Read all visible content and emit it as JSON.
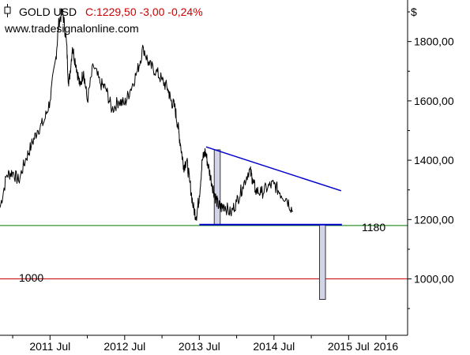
{
  "header": {
    "symbol": "GOLD USD",
    "quote": "C:1229,50 -3,00 -0,24%",
    "website": "www.tradesignalonline.com",
    "currency": "$"
  },
  "colors": {
    "price": "#000000",
    "trendline": "#0000cc",
    "support_line": "#007a00",
    "support_label": "#007a00",
    "target_line": "#cc0000",
    "target_label": "#cc0000",
    "quote": "#cc0000",
    "box_fill": "#d4d4e8"
  },
  "chart_data": {
    "type": "line",
    "title": "GOLD USD",
    "x_tick_labels": [
      "2011 Jul",
      "2012 Jul",
      "2013 Jul",
      "2014 Jul",
      "2015 Jul",
      "2016"
    ],
    "x_ticks": [
      2011.5,
      2012.5,
      2013.5,
      2014.5,
      2015.5,
      2016.0
    ],
    "xlim": [
      2010.83,
      2016.29
    ],
    "y_tick_labels": [
      "1000,00",
      "1200,00",
      "1400,00",
      "1600,00",
      "1800,00"
    ],
    "y_ticks": [
      1000,
      1200,
      1400,
      1600,
      1800
    ],
    "ylim": [
      810,
      1940
    ],
    "y_axis_side": "right",
    "grid": false,
    "series": [
      {
        "x": [
          2010.83,
          2010.92,
          2011.0,
          2011.08,
          2011.17,
          2011.25,
          2011.33,
          2011.42,
          2011.5,
          2011.58,
          2011.62,
          2011.67,
          2011.72,
          2011.75,
          2011.8,
          2011.85,
          2011.9,
          2011.95,
          2012.0,
          2012.08,
          2012.17,
          2012.25,
          2012.33,
          2012.42,
          2012.5,
          2012.58,
          2012.67,
          2012.75,
          2012.83,
          2012.92,
          2013.0,
          2013.08,
          2013.12,
          2013.17,
          2013.21,
          2013.25,
          2013.29,
          2013.33,
          2013.37,
          2013.42,
          2013.46,
          2013.5,
          2013.54,
          2013.58,
          2013.62,
          2013.67,
          2013.71,
          2013.75,
          2013.79,
          2013.83,
          2013.92,
          2014.0,
          2014.08,
          2014.17,
          2014.21,
          2014.25,
          2014.33,
          2014.42,
          2014.5,
          2014.58,
          2014.67,
          2014.75
        ],
        "values": [
          1240,
          1350,
          1360,
          1330,
          1400,
          1450,
          1500,
          1530,
          1600,
          1750,
          1870,
          1900,
          1800,
          1650,
          1780,
          1720,
          1650,
          1700,
          1600,
          1720,
          1660,
          1640,
          1570,
          1600,
          1590,
          1640,
          1700,
          1780,
          1720,
          1700,
          1670,
          1640,
          1600,
          1580,
          1520,
          1450,
          1380,
          1400,
          1330,
          1240,
          1210,
          1280,
          1400,
          1430,
          1380,
          1320,
          1280,
          1250,
          1240,
          1250,
          1220,
          1260,
          1310,
          1370,
          1340,
          1300,
          1290,
          1310,
          1320,
          1290,
          1270,
          1230
        ]
      }
    ],
    "trendline": {
      "x": [
        2013.59,
        2015.4
      ],
      "y": [
        1445,
        1297
      ]
    },
    "support_line": {
      "x": [
        2013.5,
        2015.41
      ],
      "y": [
        1183,
        1183
      ]
    },
    "horizontal_lines": [
      {
        "y": 1180,
        "label": "1180"
      },
      {
        "y": 1000,
        "label": "1000"
      }
    ],
    "boxes": [
      {
        "x": [
          2013.7,
          2013.78
        ],
        "y": [
          1183,
          1435
        ]
      },
      {
        "x": [
          2015.11,
          2015.19
        ],
        "y": [
          1183,
          931
        ]
      }
    ]
  }
}
